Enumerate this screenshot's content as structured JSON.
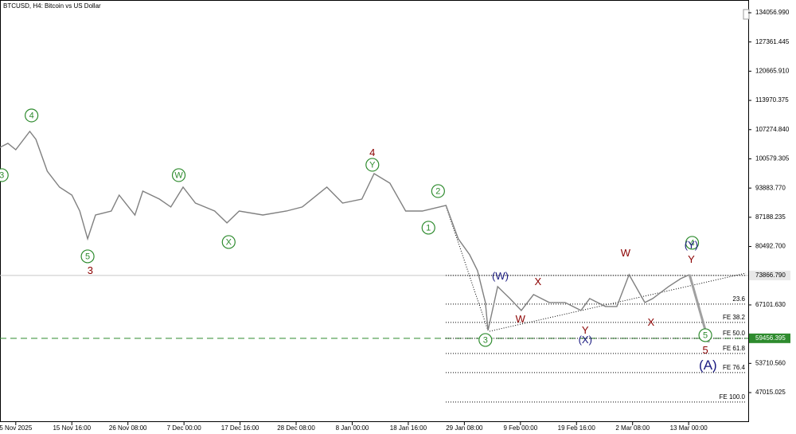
{
  "chart_data": {
    "type": "line",
    "title": "BTCUSD, H4:  Bitcoin vs US Dollar",
    "color": "#808080",
    "xlim": [
      -18,
      836
    ],
    "ylim": [
      40265,
      136611
    ],
    "xticks": [
      {
        "value": 0,
        "label": "5 Nov 2025"
      },
      {
        "value": 64,
        "label": "15 Nov 16:00"
      },
      {
        "value": 128,
        "label": "26 Nov 08:00"
      },
      {
        "value": 192,
        "label": "7 Dec 00:00"
      },
      {
        "value": 256,
        "label": "17 Dec 16:00"
      },
      {
        "value": 320,
        "label": "28 Dec 08:00"
      },
      {
        "value": 384,
        "label": "8 Jan 00:00"
      },
      {
        "value": 448,
        "label": "18 Jan 16:00"
      },
      {
        "value": 512,
        "label": "29 Jan 08:00"
      },
      {
        "value": 576,
        "label": "9 Feb 00:00"
      },
      {
        "value": 640,
        "label": "19 Feb 16:00"
      },
      {
        "value": 704,
        "label": "2 Mar 08:00"
      },
      {
        "value": 768,
        "label": "13 Mar 00:00"
      }
    ],
    "yticks": [
      {
        "value": 134056.99,
        "label": "134056.990"
      },
      {
        "value": 127361.445,
        "label": "127361.445"
      },
      {
        "value": 120665.91,
        "label": "120665.910"
      },
      {
        "value": 113970.375,
        "label": "113970.375"
      },
      {
        "value": 107274.84,
        "label": "107274.840"
      },
      {
        "value": 100579.305,
        "label": "100579.305"
      },
      {
        "value": 93883.77,
        "label": "93883.770"
      },
      {
        "value": 87188.235,
        "label": "87188.235"
      },
      {
        "value": 80492.7,
        "label": "80492.700"
      },
      {
        "value": 67101.63,
        "label": "67101.630"
      },
      {
        "value": 53710.56,
        "label": "53710.560"
      },
      {
        "value": 47015.025,
        "label": "47015.025"
      }
    ],
    "x": [
      -18,
      -9,
      0,
      16,
      23,
      36,
      50,
      64,
      73,
      82,
      91,
      109,
      118,
      136,
      145,
      164,
      177,
      191,
      205,
      227,
      241,
      255,
      282,
      309,
      327,
      355,
      373,
      395,
      409,
      427,
      445,
      464,
      491,
      505,
      518,
      527,
      536,
      539,
      550,
      564,
      577,
      591,
      609,
      627,
      645,
      655,
      673,
      686,
      700,
      718,
      727,
      745,
      759,
      769
    ],
    "values": [
      103225,
      104137,
      102677,
      106873,
      105049,
      97751,
      94103,
      92278,
      88629,
      82244,
      87717,
      88629,
      92278,
      87717,
      93190,
      91366,
      89542,
      94103,
      90454,
      88629,
      85893,
      88629,
      87717,
      88629,
      89542,
      94103,
      90454,
      91366,
      97204,
      95015,
      88629,
      88629,
      89907,
      82244,
      78595,
      74946,
      67649,
      61263,
      71298,
      68561,
      65824,
      69473,
      67649,
      67649,
      65824,
      68561,
      66737,
      66737,
      74034,
      67649,
      68561,
      71298,
      73122,
      74034
    ],
    "projection": {
      "x": [
        769,
        791
      ],
      "values": [
        74034,
        58527
      ]
    },
    "levels": [
      {
        "value": 73866.79,
        "label": "73866.790",
        "color": "#c8c8c8"
      },
      {
        "value": 59456.395,
        "label": "59456.395",
        "color": "#2e8b2e"
      }
    ],
    "fib_levels": [
      {
        "value": 67284,
        "label": "23.6"
      },
      {
        "value": 63088,
        "label": "FE 38.2"
      },
      {
        "value": 59439,
        "label": "FE 50.0"
      },
      {
        "value": 55973,
        "label": "FE 61.8"
      },
      {
        "value": 51594,
        "label": "FE 76.4"
      },
      {
        "value": 44844,
        "label": "FE 100.0"
      }
    ],
    "annotations": [
      {
        "text": "3",
        "color": "#2e8b2e",
        "circled": true,
        "x": -16,
        "y": 96839
      },
      {
        "text": "4",
        "color": "#2e8b2e",
        "circled": true,
        "x": 18,
        "y": 110522
      },
      {
        "text": "5",
        "color": "#2e8b2e",
        "circled": true,
        "x": 82,
        "y": 78230
      },
      {
        "text": "3",
        "color": "#8b0000",
        "circled": false,
        "x": 85,
        "y": 74946
      },
      {
        "text": "W",
        "color": "#2e8b2e",
        "circled": true,
        "x": 186,
        "y": 96839
      },
      {
        "text": "X",
        "color": "#2e8b2e",
        "circled": true,
        "x": 243,
        "y": 81514
      },
      {
        "text": "4",
        "color": "#8b0000",
        "circled": false,
        "x": 407,
        "y": 101948
      },
      {
        "text": "Y",
        "color": "#2e8b2e",
        "circled": true,
        "x": 407,
        "y": 99211
      },
      {
        "text": "2",
        "color": "#2e8b2e",
        "circled": true,
        "x": 482,
        "y": 93190
      },
      {
        "text": "1",
        "color": "#2e8b2e",
        "circled": true,
        "x": 471,
        "y": 84798
      },
      {
        "text": "3",
        "color": "#2e8b2e",
        "circled": true,
        "x": 536,
        "y": 59073
      },
      {
        "text": "(W)",
        "color": "#1a1a80",
        "circled": false,
        "x": 553,
        "y": 73669
      },
      {
        "text": "X",
        "color": "#8b0000",
        "circled": false,
        "x": 596,
        "y": 72391
      },
      {
        "text": "W",
        "color": "#8b0000",
        "circled": false,
        "x": 576,
        "y": 63817
      },
      {
        "text": "Y",
        "color": "#8b0000",
        "circled": false,
        "x": 650,
        "y": 61263
      },
      {
        "text": "(X)",
        "color": "#1a1a80",
        "circled": false,
        "x": 650,
        "y": 59073
      },
      {
        "text": "W",
        "color": "#8b0000",
        "circled": false,
        "x": 696,
        "y": 78960
      },
      {
        "text": "X",
        "color": "#8b0000",
        "circled": false,
        "x": 725,
        "y": 63088
      },
      {
        "text": "4",
        "color": "#2e8b2e",
        "circled": true,
        "x": 772,
        "y": 81331
      },
      {
        "text": "(Y)",
        "color": "#1a1a80",
        "circled": false,
        "x": 771,
        "y": 80785
      },
      {
        "text": "Y",
        "color": "#8b0000",
        "circled": false,
        "x": 771,
        "y": 77493
      },
      {
        "text": "5",
        "color": "#2e8b2e",
        "circled": true,
        "x": 787,
        "y": 60169
      },
      {
        "text": "5",
        "color": "#8b0000",
        "circled": false,
        "x": 787,
        "y": 56702
      },
      {
        "text": "(A)",
        "color": "#1a1a80",
        "circled": false,
        "x": 790,
        "y": 53236
      }
    ]
  }
}
